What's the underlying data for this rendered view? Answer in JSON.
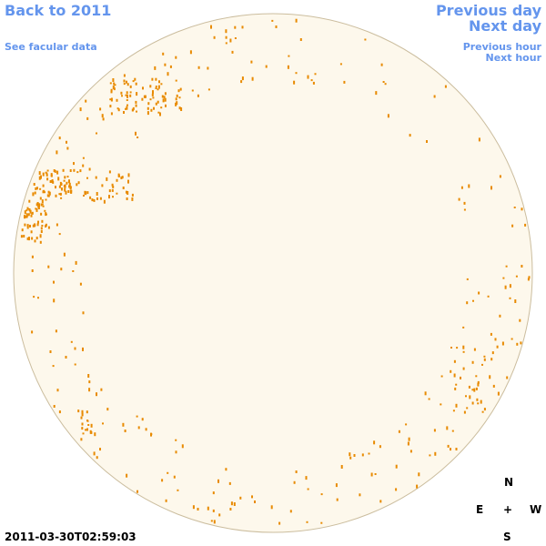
{
  "nav": {
    "back": "Back to 2011",
    "facular": "See facular data",
    "previous_day": "Previous day",
    "next_day": "Next day",
    "previous_hour": "Previous hour",
    "next_hour": "Next hour"
  },
  "timestamp": "2011-03-30T02:59:03",
  "compass": {
    "north": "N",
    "east": "E",
    "center": "+",
    "west": "W",
    "south": "S"
  }
}
